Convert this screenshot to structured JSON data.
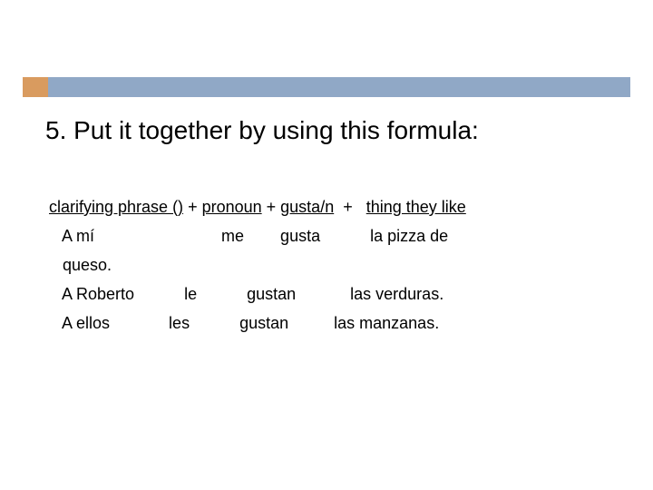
{
  "colors": {
    "accent": "#d99b5f",
    "bar": "#90a8c6",
    "text": "#000000",
    "background": "#ffffff"
  },
  "type": "document",
  "title": "5. Put it together by using this formula:",
  "formula": {
    "part1": "clarifying phrase ()",
    "plus1": " + ",
    "part2": "pronoun",
    "plus2": " + ",
    "part3": "gusta/n",
    "plus3": "  +   ",
    "part4": "thing they like"
  },
  "rows": [
    {
      "clarifying": "A mí",
      "pronoun": "me",
      "verb": "gusta",
      "thing": "la pizza de",
      "cont": "queso."
    },
    {
      "clarifying": "A Roberto",
      "pronoun": "le",
      "verb": "gustan",
      "thing": "las verduras."
    },
    {
      "clarifying": "A ellos",
      "pronoun": "les",
      "verb": "gustan",
      "thing": "las manzanas."
    }
  ]
}
